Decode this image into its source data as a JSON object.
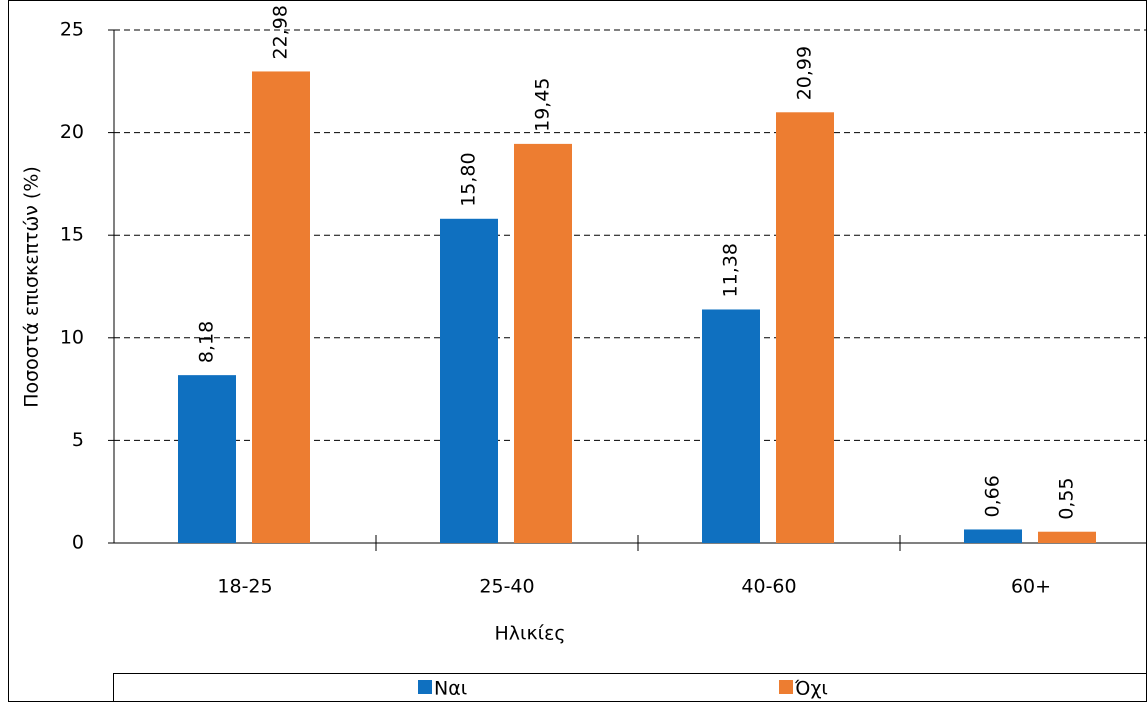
{
  "chart_data": {
    "type": "bar",
    "x_label": "Ηλικίες",
    "y_label": "Ποσοστά επισκεπτών (%)",
    "categories": [
      "18-25",
      "25-40",
      "40-60",
      "60+"
    ],
    "series": [
      {
        "name": "Ναι",
        "color": "#0f70c0",
        "values": [
          8.18,
          15.8,
          11.38,
          0.66
        ],
        "value_labels": [
          "8,18",
          "15,80",
          "11,38",
          "0,66"
        ]
      },
      {
        "name": "Όχι",
        "color": "#ed7d31",
        "values": [
          22.98,
          19.45,
          20.99,
          0.55
        ],
        "value_labels": [
          "22,98",
          "19,45",
          "20,99",
          "0,55"
        ]
      }
    ],
    "ylim": [
      0,
      25
    ],
    "yticks": [
      0,
      5,
      10,
      15,
      20,
      25
    ],
    "grid": true,
    "legend": "bottom"
  }
}
